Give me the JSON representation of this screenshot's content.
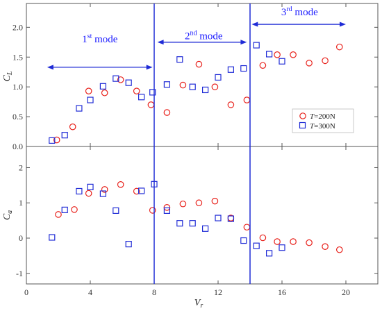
{
  "colors": {
    "t200": "#e8221c",
    "t300": "#1f2bd6",
    "mode_line": "#1f2bd6",
    "arrow": "#1f2bd6",
    "axis": "#555555"
  },
  "chart_data": [
    {
      "type": "scatter",
      "id": "cl",
      "ylabel_main": "C",
      "ylabel_sub": "L",
      "xlim": [
        0,
        22
      ],
      "ylim": [
        0,
        2.4
      ],
      "yticks": [
        0.0,
        0.5,
        1.0,
        1.5,
        2.0
      ],
      "ytick_labels": [
        "0.0",
        "0.5",
        "1.0",
        "1.5",
        "2.0"
      ],
      "grid": false,
      "legend": {
        "placement": "right-middle",
        "entries": [
          {
            "series": "t200",
            "italic": "T",
            "text": "=200N"
          },
          {
            "series": "t300",
            "italic": "T",
            "text": "=300N"
          }
        ]
      },
      "series": [
        {
          "id": "t200",
          "marker": "circle",
          "points": [
            [
              1.9,
              0.11
            ],
            [
              2.9,
              0.33
            ],
            [
              3.9,
              0.93
            ],
            [
              4.9,
              0.9
            ],
            [
              5.9,
              1.12
            ],
            [
              6.9,
              0.93
            ],
            [
              7.8,
              0.7
            ],
            [
              8.8,
              0.57
            ],
            [
              9.8,
              1.03
            ],
            [
              10.8,
              1.38
            ],
            [
              11.8,
              1.0
            ],
            [
              12.8,
              0.7
            ],
            [
              13.8,
              0.78
            ],
            [
              14.8,
              1.36
            ],
            [
              15.7,
              1.54
            ],
            [
              16.7,
              1.54
            ],
            [
              17.7,
              1.4
            ],
            [
              18.7,
              1.44
            ],
            [
              19.6,
              1.67
            ]
          ]
        },
        {
          "id": "t300",
          "marker": "square",
          "points": [
            [
              1.6,
              0.1
            ],
            [
              2.4,
              0.19
            ],
            [
              3.3,
              0.64
            ],
            [
              4.0,
              0.78
            ],
            [
              4.8,
              1.01
            ],
            [
              5.6,
              1.14
            ],
            [
              6.4,
              1.07
            ],
            [
              7.2,
              0.83
            ],
            [
              7.9,
              0.91
            ],
            [
              8.8,
              1.04
            ],
            [
              9.6,
              1.46
            ],
            [
              10.4,
              1.0
            ],
            [
              11.2,
              0.95
            ],
            [
              12.0,
              1.16
            ],
            [
              12.8,
              1.29
            ],
            [
              13.6,
              1.31
            ],
            [
              14.4,
              1.7
            ],
            [
              15.2,
              1.55
            ],
            [
              16.0,
              1.43
            ]
          ]
        }
      ],
      "annotations": [
        {
          "base": "1",
          "sup": "st",
          "word": " mode",
          "x": 4.6,
          "y": 1.75,
          "arrow_from": 1.3,
          "arrow_to": 7.9,
          "arrow_y": 1.33
        },
        {
          "base": "2",
          "sup": "nd",
          "word": " mode",
          "x": 11.1,
          "y": 1.8,
          "arrow_from": 8.2,
          "arrow_to": 13.8,
          "arrow_y": 1.75
        },
        {
          "base": "3",
          "sup": "rd",
          "word": " mode",
          "x": 17.1,
          "y": 2.2,
          "arrow_from": 14.1,
          "arrow_to": 20.0,
          "arrow_y": 2.05
        }
      ]
    },
    {
      "type": "scatter",
      "id": "ca",
      "ylabel_main": "C",
      "ylabel_sub": "a",
      "xlabel_main": "V",
      "xlabel_sub": "r",
      "xlim": [
        0,
        22
      ],
      "ylim": [
        -1.3,
        2.6
      ],
      "xticks": [
        0,
        4,
        8,
        12,
        16,
        20
      ],
      "xtick_labels": [
        "0",
        "4",
        "8",
        "12",
        "16",
        "20"
      ],
      "yticks": [
        -1,
        0,
        1,
        2
      ],
      "ytick_labels": [
        "-1",
        "0",
        "1",
        "2"
      ],
      "grid": false,
      "series": [
        {
          "id": "t200",
          "marker": "circle",
          "points": [
            [
              2.0,
              0.67
            ],
            [
              3.0,
              0.81
            ],
            [
              3.9,
              1.27
            ],
            [
              4.9,
              1.38
            ],
            [
              5.9,
              1.52
            ],
            [
              6.9,
              1.33
            ],
            [
              7.9,
              0.79
            ],
            [
              8.8,
              0.87
            ],
            [
              9.8,
              0.97
            ],
            [
              10.8,
              1.0
            ],
            [
              11.8,
              1.05
            ],
            [
              12.8,
              0.57
            ],
            [
              13.8,
              0.31
            ],
            [
              14.8,
              0.01
            ],
            [
              15.7,
              -0.1
            ],
            [
              16.7,
              -0.1
            ],
            [
              17.7,
              -0.13
            ],
            [
              18.7,
              -0.24
            ],
            [
              19.6,
              -0.33
            ]
          ]
        },
        {
          "id": "t300",
          "marker": "square",
          "points": [
            [
              1.6,
              0.02
            ],
            [
              2.4,
              0.8
            ],
            [
              3.3,
              1.33
            ],
            [
              4.0,
              1.45
            ],
            [
              4.8,
              1.26
            ],
            [
              5.6,
              0.78
            ],
            [
              6.4,
              -0.17
            ],
            [
              7.2,
              1.34
            ],
            [
              8.0,
              1.53
            ],
            [
              8.8,
              0.78
            ],
            [
              9.6,
              0.42
            ],
            [
              10.4,
              0.42
            ],
            [
              11.2,
              0.27
            ],
            [
              12.0,
              0.57
            ],
            [
              12.8,
              0.55
            ],
            [
              13.6,
              -0.07
            ],
            [
              14.4,
              -0.22
            ],
            [
              15.2,
              -0.43
            ],
            [
              16.0,
              -0.27
            ]
          ]
        }
      ]
    }
  ],
  "mode_boundaries": [
    8.0,
    14.0
  ]
}
